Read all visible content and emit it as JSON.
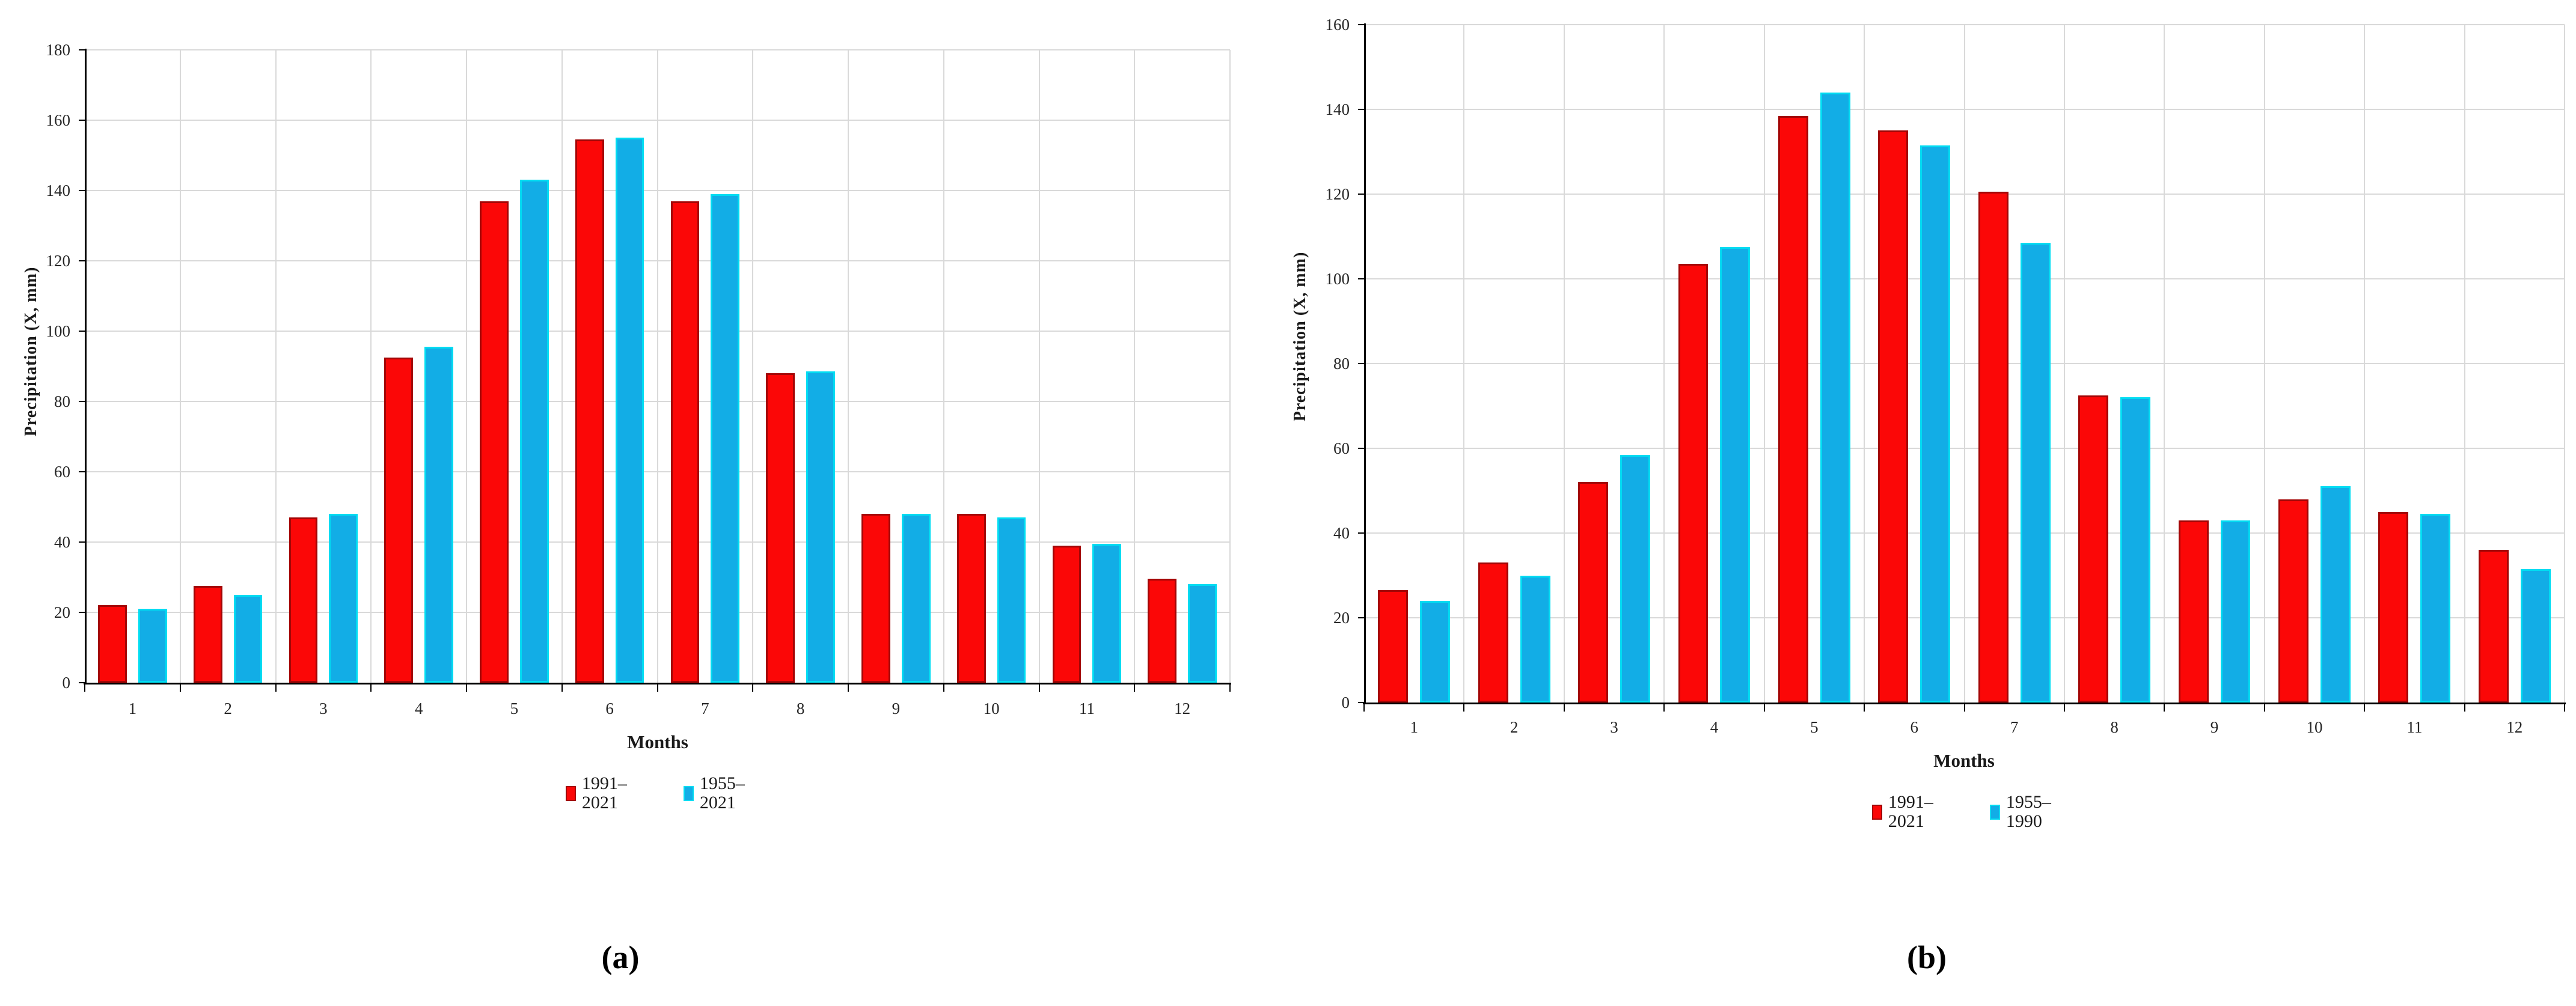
{
  "figure": {
    "background": "#ffffff",
    "captions": {
      "a": "(a)",
      "b": "(b)"
    }
  },
  "colors": {
    "red_fill": "#fb0707",
    "red_edge": "#a40606",
    "blue_fill": "#12ade6",
    "blue_edge": "#00dcf2",
    "gridline": "#d9d9d9",
    "axis": "#000000",
    "text": "#1a1a1a"
  },
  "chart_data": [
    {
      "id": "a",
      "type": "bar",
      "caption": "(a)",
      "title": "",
      "xlabel": "Months",
      "ylabel": "Precipitation (X, mm)",
      "ylim": [
        0,
        180
      ],
      "ystep": 20,
      "grid": true,
      "legend_position": "bottom",
      "categories": [
        "1",
        "2",
        "3",
        "4",
        "5",
        "6",
        "7",
        "8",
        "9",
        "10",
        "11",
        "12"
      ],
      "series": [
        {
          "name": "1991–2021",
          "color_key": "red",
          "values": [
            22,
            27.5,
            47,
            92.5,
            137,
            154.5,
            137,
            88,
            48,
            48,
            39,
            29.5
          ]
        },
        {
          "name": "1955–2021",
          "color_key": "blue",
          "values": [
            21,
            25,
            48,
            95.5,
            143,
            155,
            139,
            88.5,
            48,
            47,
            39.5,
            28
          ]
        }
      ]
    },
    {
      "id": "b",
      "type": "bar",
      "caption": "(b)",
      "title": "",
      "xlabel": "Months",
      "ylabel": "Precipitation (X, mm)",
      "ylim": [
        0,
        160
      ],
      "ystep": 20,
      "grid": true,
      "legend_position": "bottom",
      "categories": [
        "1",
        "2",
        "3",
        "4",
        "5",
        "6",
        "7",
        "8",
        "9",
        "10",
        "11",
        "12"
      ],
      "series": [
        {
          "name": "1991–2021",
          "color_key": "red",
          "values": [
            26.5,
            33,
            52,
            103.5,
            138.5,
            135,
            120.5,
            72.5,
            43,
            48,
            45,
            36
          ]
        },
        {
          "name": "1955–1990",
          "color_key": "blue",
          "values": [
            24,
            30,
            58.5,
            107.5,
            144,
            131.5,
            108.5,
            72,
            43,
            51,
            44.5,
            31.5
          ]
        }
      ]
    }
  ]
}
